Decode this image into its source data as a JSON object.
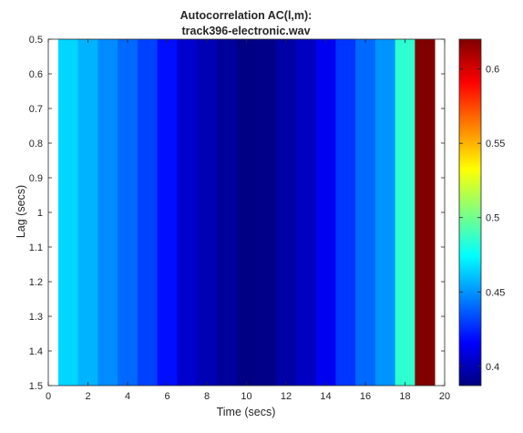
{
  "chart_data": {
    "type": "heatmap",
    "title": [
      "Autocorrelation AC(l,m):",
      "track396-electronic.wav"
    ],
    "xlabel": "Time (secs)",
    "ylabel": "Lag (secs)",
    "xlim": [
      0,
      20
    ],
    "ylim": [
      0.5,
      1.5
    ],
    "y_reversed": true,
    "xticks": [
      0,
      2,
      4,
      6,
      8,
      10,
      12,
      14,
      16,
      18,
      20
    ],
    "yticks": [
      0.5,
      0.6,
      0.7,
      0.8,
      0.9,
      1,
      1.1,
      1.2,
      1.3,
      1.4,
      1.5
    ],
    "colormap": "jet",
    "clim": [
      0.387,
      0.62
    ],
    "colorbar_ticks": [
      0.4,
      0.45,
      0.5,
      0.55,
      0.6
    ],
    "columns": {
      "time_centers": [
        1,
        2,
        3,
        4,
        5,
        6,
        7,
        8,
        9,
        10,
        11,
        12,
        13,
        14,
        15,
        16,
        17,
        18,
        19
      ],
      "values": [
        0.465,
        0.457,
        0.448,
        0.44,
        0.431,
        0.419,
        0.405,
        0.399,
        0.393,
        0.388,
        0.389,
        0.396,
        0.402,
        0.413,
        0.428,
        0.44,
        0.45,
        0.485,
        0.62
      ]
    }
  }
}
